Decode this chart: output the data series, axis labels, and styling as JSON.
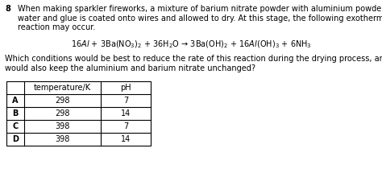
{
  "question_number": "8",
  "paragraph_lines": [
    "When making sparkler fireworks, a mixture of barium nitrate powder with aluminium powder,",
    "water and glue is coated onto wires and allowed to dry. At this stage, the following exothermic",
    "reaction may occur."
  ],
  "equation": "16$Al$ + 3Ba(NO$_3$)$_2$ + 36H$_2$O → 3Ba(OH)$_2$ + 16$Al$(OH)$_3$ + 6NH$_3$",
  "question_lines": [
    "Which conditions would be best to reduce the rate of this reaction during the drying process, and",
    "would also keep the aluminium and barium nitrate unchanged?"
  ],
  "table_col0_header": "",
  "table_col1_header": "temperature/K",
  "table_col2_header": "pH",
  "table_rows": [
    [
      "A",
      "298",
      "7"
    ],
    [
      "B",
      "298",
      "14"
    ],
    [
      "C",
      "398",
      "7"
    ],
    [
      "D",
      "398",
      "14"
    ]
  ],
  "bg_color": "#ffffff",
  "text_color": "#000000",
  "font_size": 7.0
}
